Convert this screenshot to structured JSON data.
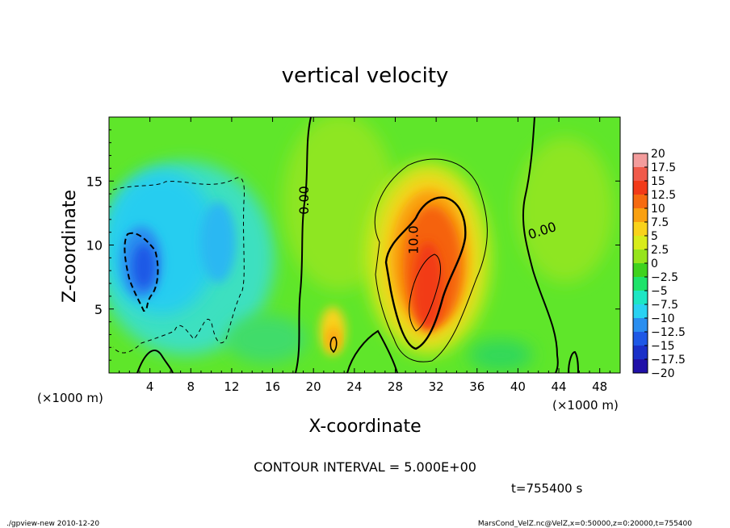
{
  "chart_data": {
    "type": "heatmap",
    "title": "vertical velocity",
    "xlabel": "X-coordinate",
    "ylabel": "Z-coordinate",
    "x_unit_left": "(×1000 m)",
    "x_unit_right": "(×1000 m)",
    "xlim": [
      0,
      50
    ],
    "ylim": [
      0,
      20
    ],
    "x_ticks": [
      4,
      8,
      12,
      16,
      20,
      24,
      28,
      32,
      36,
      40,
      44,
      48
    ],
    "y_ticks": [
      5,
      10,
      15
    ],
    "contour_interval_text": "CONTOUR INTERVAL = 5.000E+00",
    "time_text": "t=755400 s",
    "contour_labels": [
      {
        "text": "0.00",
        "x": 19.5,
        "y": 13.5,
        "rotate": -90
      },
      {
        "text": "10.0",
        "x": 30.2,
        "y": 10.4,
        "rotate": -90
      },
      {
        "text": "0.00",
        "x": 42.5,
        "y": 10.8,
        "rotate": -18
      }
    ],
    "colorbar": {
      "levels": [
        20,
        17.5,
        15,
        12.5,
        10,
        7.5,
        5,
        2.5,
        0,
        -2.5,
        -5,
        -7.5,
        -10,
        -12.5,
        -15,
        -17.5,
        -20
      ],
      "labels": [
        "20",
        "17.5",
        "15",
        "12.5",
        "10",
        "7.5",
        "5",
        "2.5",
        "0",
        "−2.5",
        "−5",
        "−7.5",
        "−10",
        "−12.5",
        "−15",
        "−17.5",
        "−20"
      ],
      "colors": [
        "#f39c9c",
        "#f05a4a",
        "#f23a18",
        "#f66a10",
        "#f9a010",
        "#f9d21a",
        "#d8ec1a",
        "#96e41c",
        "#3fd21e",
        "#1ee36a",
        "#1de6c4",
        "#2ad2f2",
        "#2a8ef0",
        "#1e58e6",
        "#1a30c8",
        "#2010a8",
        "#7a10c6"
      ]
    },
    "features": [
      {
        "kind": "updraft",
        "x": 31,
        "y": 8,
        "peak": 17.5
      },
      {
        "kind": "updraft",
        "x": 22,
        "y": 3,
        "peak": 9
      },
      {
        "kind": "downdraft",
        "x": 3.5,
        "y": 8.5,
        "peak": -13
      },
      {
        "kind": "downdraft",
        "x": 11,
        "y": 9,
        "peak": -6
      }
    ]
  },
  "footer": {
    "left": "./gpview-new  2010-12-20",
    "right": "MarsCond_VelZ.nc@VelZ,x=0:50000,z=0:20000,t=755400"
  }
}
